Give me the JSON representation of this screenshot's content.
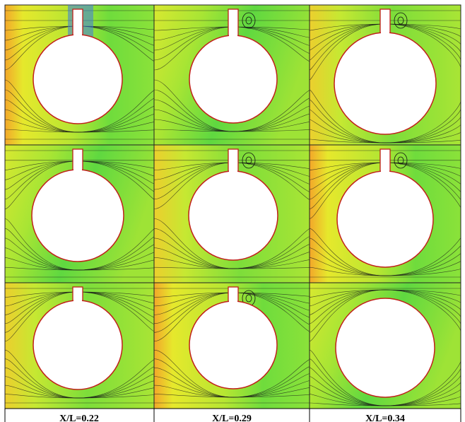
{
  "figure": {
    "column_labels": [
      "X/L=0.22",
      "X/L=0.29",
      "X/L=0.34"
    ]
  }
}
